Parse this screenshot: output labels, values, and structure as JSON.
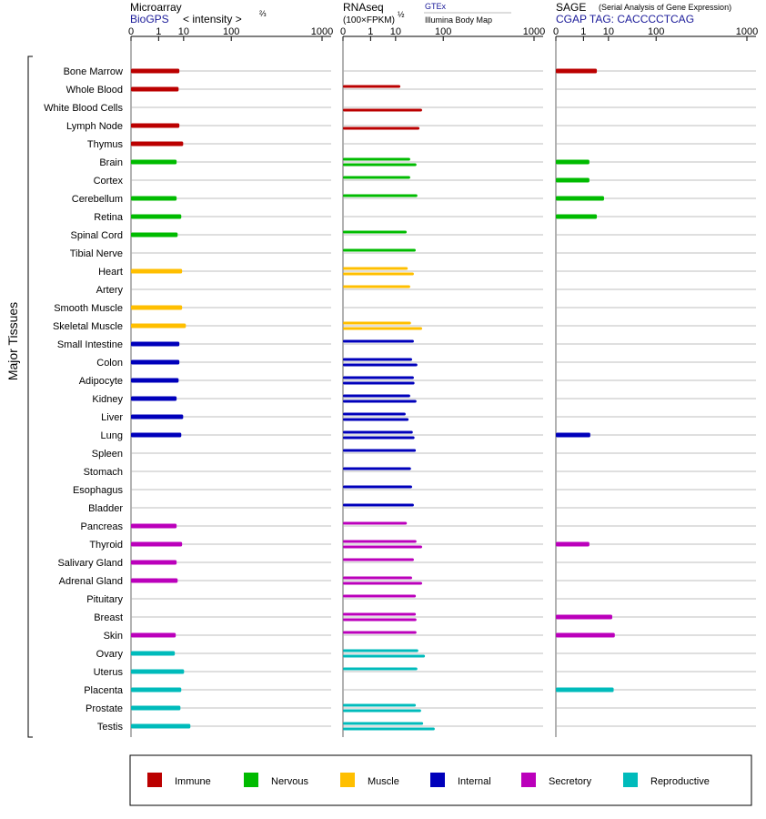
{
  "chart_data": {
    "type": "bar",
    "orientation": "horizontal",
    "y_axis_label": "Major Tissues",
    "categories": [
      "Bone Marrow",
      "Whole Blood",
      "White Blood Cells",
      "Lymph Node",
      "Thymus",
      "Brain",
      "Cortex",
      "Cerebellum",
      "Retina",
      "Spinal Cord",
      "Tibial Nerve",
      "Heart",
      "Artery",
      "Smooth Muscle",
      "Skeletal Muscle",
      "Small Intestine",
      "Colon",
      "Adipocyte",
      "Kidney",
      "Liver",
      "Lung",
      "Spleen",
      "Stomach",
      "Esophagus",
      "Bladder",
      "Pancreas",
      "Thyroid",
      "Salivary Gland",
      "Adrenal Gland",
      "Pituitary",
      "Breast",
      "Skin",
      "Ovary",
      "Uterus",
      "Placenta",
      "Prostate",
      "Testis"
    ],
    "bar_colors": [
      "#bb0000",
      "#bb0000",
      "#bb0000",
      "#bb0000",
      "#bb0000",
      "#00bb00",
      "#00bb00",
      "#00bb00",
      "#00bb00",
      "#00bb00",
      "#00bb00",
      "#ffbf00",
      "#ffbf00",
      "#ffbf00",
      "#ffbf00",
      "#0000bb",
      "#0000bb",
      "#0000bb",
      "#0000bb",
      "#0000bb",
      "#0000bb",
      "#0000bb",
      "#0000bb",
      "#0000bb",
      "#0000bb",
      "#bb00bb",
      "#bb00bb",
      "#bb00bb",
      "#bb00bb",
      "#bb00bb",
      "#bb00bb",
      "#bb00bb",
      "#00bbbb",
      "#00bbbb",
      "#00bbbb",
      "#00bbbb",
      "#00bbbb"
    ],
    "legend": [
      {
        "name": "Immune",
        "color": "#bb0000"
      },
      {
        "name": "Nervous",
        "color": "#00bb00"
      },
      {
        "name": "Muscle",
        "color": "#ffbf00"
      },
      {
        "name": "Internal",
        "color": "#0000bb"
      },
      {
        "name": "Secretory",
        "color": "#bb00bb"
      },
      {
        "name": "Reproductive",
        "color": "#00bbbb"
      }
    ],
    "panels": [
      {
        "title": "Microarray",
        "source": "BioGPS",
        "measure": "< intensity >",
        "exponent": "⅔",
        "xlim": [
          0,
          1000
        ],
        "xticks": [
          0,
          1,
          10,
          100,
          1000
        ],
        "series": [
          {
            "values": [
              7.4,
              7,
              null,
              7.4,
              9.7,
              6,
              null,
              6,
              8.5,
              6.5,
              null,
              9,
              null,
              9,
              11.6,
              7.4,
              7.4,
              7,
              6,
              9.7,
              8.5,
              null,
              null,
              null,
              null,
              6,
              9,
              6,
              6.5,
              null,
              null,
              5.6,
              5.2,
              10.3,
              8.5,
              8,
              15.4
            ]
          }
        ]
      },
      {
        "title": "RNAseq",
        "measure": "(100×FPKM)",
        "exponent": "½",
        "xlim": [
          0,
          1000
        ],
        "xticks": [
          0,
          1,
          10,
          100,
          1000
        ],
        "series": [
          {
            "name": "GTEx",
            "values": [
              null,
              13.6,
              null,
              null,
              null,
              24,
              24,
              34.5,
              null,
              19.8,
              31.8,
              21,
              24,
              null,
              25,
              29,
              26.5,
              29,
              24,
              18.7,
              27.5,
              32,
              25,
              26.5,
              29,
              20,
              33,
              29,
              26.5,
              32,
              32,
              33,
              36,
              34.5,
              null,
              32,
              45
            ]
          },
          {
            "name": "Illumina Body Map",
            "values": [
              null,
              null,
              42.9,
              38,
              null,
              33,
              null,
              null,
              null,
              null,
              null,
              29,
              null,
              null,
              43,
              null,
              34.5,
              30,
              33,
              22,
              30,
              null,
              null,
              null,
              null,
              null,
              43,
              null,
              43,
              null,
              33,
              null,
              48.7,
              null,
              null,
              41,
              73
            ]
          }
        ]
      },
      {
        "title": "SAGE",
        "subtitle": "(Serial Analysis of Gene Expression)",
        "source": "CGAP TAG: CACCCCTCAG",
        "xlim": [
          0,
          1000
        ],
        "xticks": [
          0,
          1,
          10,
          100,
          1000
        ],
        "series": [
          {
            "values": [
              4.1,
              null,
              null,
              null,
              null,
              2,
              2,
              7.3,
              4.1,
              null,
              null,
              null,
              null,
              null,
              null,
              null,
              null,
              null,
              null,
              null,
              2.2,
              null,
              null,
              null,
              null,
              null,
              2,
              null,
              null,
              null,
              12.8,
              15,
              null,
              null,
              14,
              null,
              null
            ]
          }
        ]
      }
    ]
  }
}
